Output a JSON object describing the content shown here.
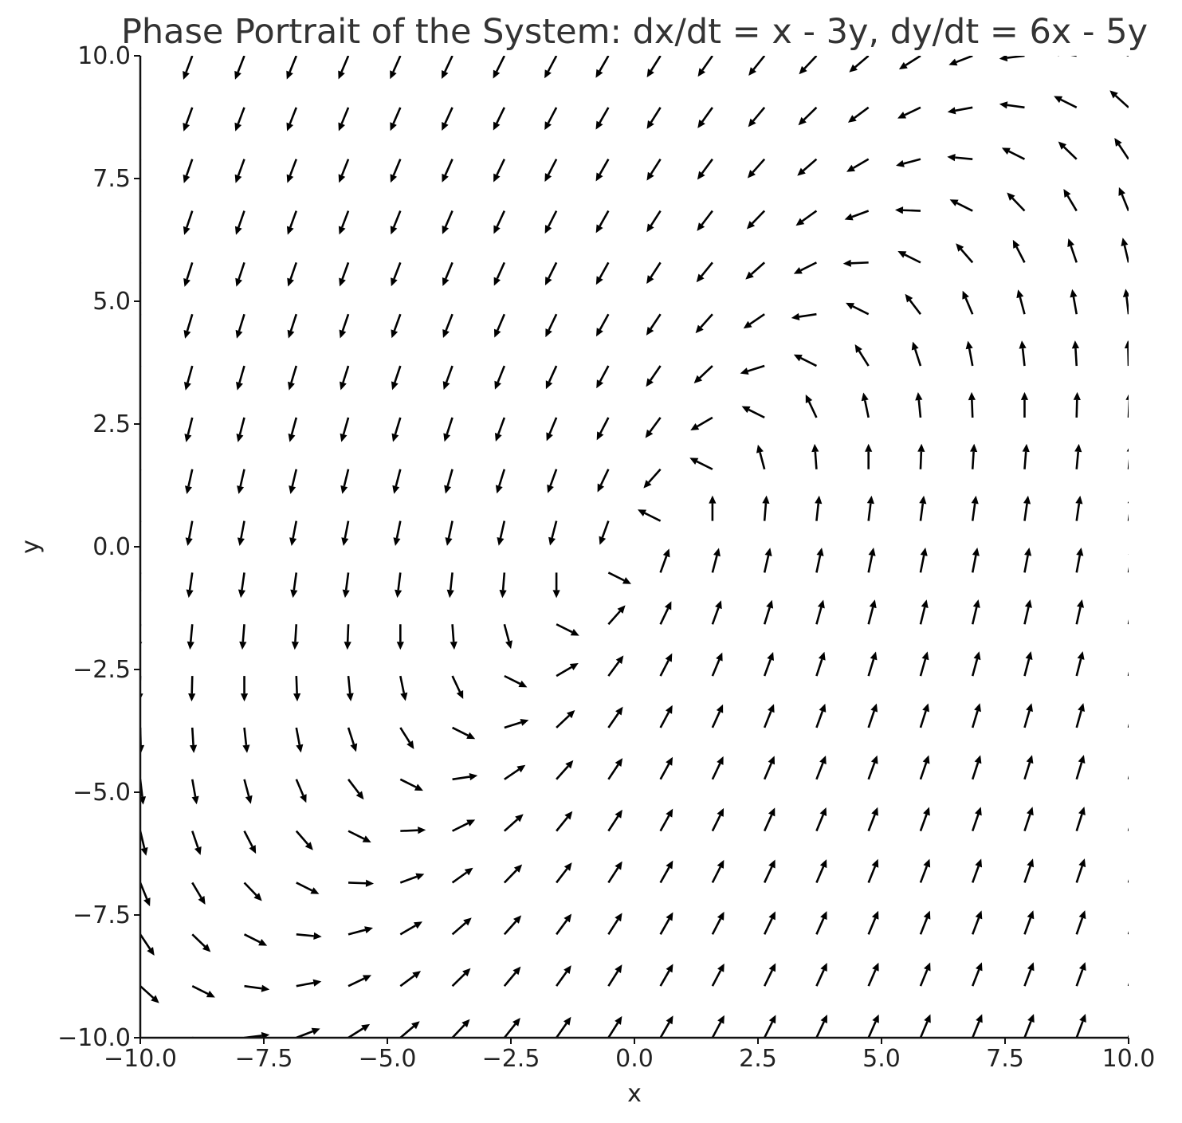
{
  "chart_data": {
    "type": "quiver",
    "title": "Phase Portrait of the System: dx/dt = x - 3y, dy/dt = 6x - 5y",
    "xlabel": "x",
    "ylabel": "y",
    "xlim": [
      -10,
      10
    ],
    "ylim": [
      -10,
      10
    ],
    "system": {
      "dx_dt": "x - 3y",
      "dy_dt": "6x - 5y",
      "a": 1,
      "b": -3,
      "c": 6,
      "d": -5
    },
    "grid_points_per_axis": 20,
    "normalized_vectors": true,
    "grid": false,
    "xticks": [
      {
        "value": -10,
        "label": "−10.0"
      },
      {
        "value": -7.5,
        "label": "−7.5"
      },
      {
        "value": -5,
        "label": "−5.0"
      },
      {
        "value": -2.5,
        "label": "−2.5"
      },
      {
        "value": 0,
        "label": "0.0"
      },
      {
        "value": 2.5,
        "label": "2.5"
      },
      {
        "value": 5,
        "label": "5.0"
      },
      {
        "value": 7.5,
        "label": "7.5"
      },
      {
        "value": 10,
        "label": "10.0"
      }
    ],
    "yticks": [
      {
        "value": -10,
        "label": "−10.0"
      },
      {
        "value": -7.5,
        "label": "−7.5"
      },
      {
        "value": -5,
        "label": "−5.0"
      },
      {
        "value": -2.5,
        "label": "−2.5"
      },
      {
        "value": 0,
        "label": "0.0"
      },
      {
        "value": 2.5,
        "label": "2.5"
      },
      {
        "value": 5,
        "label": "5.0"
      },
      {
        "value": 7.5,
        "label": "7.5"
      },
      {
        "value": 10,
        "label": "10.0"
      }
    ],
    "arrow_color": "#000000",
    "axis_color": "#111111",
    "text_color": "#222222"
  }
}
